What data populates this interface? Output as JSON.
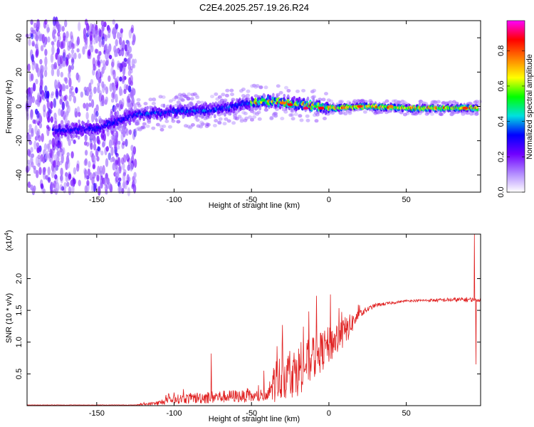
{
  "title": "C2E4.2025.257.19.26.R24",
  "colors": {
    "snr_line": "#e02020",
    "colormap": [
      "#ffffff",
      "#b088ff",
      "#7000ff",
      "#0000ff",
      "#00e0e0",
      "#00ff00",
      "#ffff00",
      "#ff8000",
      "#ff0000",
      "#ff00ff"
    ]
  },
  "chart_data": [
    {
      "type": "heatmap",
      "name": "spectrogram",
      "xlabel": "Height of straight line (km)",
      "ylabel": "Frequency (Hz)",
      "xlim": [
        -195,
        98
      ],
      "ylim": [
        -50,
        50
      ],
      "xticks": [
        -150,
        -100,
        -50,
        0,
        50
      ],
      "yticks": [
        -40,
        -20,
        0,
        20,
        40
      ],
      "colorbar": {
        "label": "Normalized spectral amplitude",
        "range": [
          0,
          0.97
        ],
        "ticks": [
          0.0,
          0.2,
          0.4,
          0.6,
          0.8
        ]
      },
      "ridge": {
        "description": "main frequency ridge (center frequency vs height)",
        "x": [
          -175,
          -150,
          -125,
          -100,
          -75,
          -50,
          -40,
          -25,
          0,
          25,
          50,
          75,
          95
        ],
        "y": [
          -14,
          -13,
          -5,
          -3,
          -2,
          2,
          3,
          2,
          -1,
          0,
          -1,
          -1,
          -1
        ]
      }
    },
    {
      "type": "line",
      "name": "snr",
      "xlabel": "Height of straight line (km)",
      "ylabel": "SNR (10 * v/v)",
      "multiplier": "(x10",
      "multiplier_exp": "4",
      "multiplier_close": ")",
      "xlim": [
        -195,
        98
      ],
      "ylim": [
        0,
        2.7
      ],
      "xticks": [
        -150,
        -100,
        -50,
        0,
        50
      ],
      "yticks": [
        0.5,
        1.0,
        1.5,
        2.0
      ],
      "ytick_labels": [
        "0.5",
        "1.0",
        "1.5",
        "2.0"
      ],
      "envelope": {
        "x": [
          -195,
          -125,
          -110,
          -100,
          -80,
          -60,
          -40,
          -35,
          -20,
          -10,
          0,
          10,
          20,
          30,
          50,
          90,
          98
        ],
        "mean": [
          0.01,
          0.01,
          0.04,
          0.1,
          0.13,
          0.15,
          0.13,
          0.4,
          0.55,
          0.75,
          0.95,
          1.15,
          1.45,
          1.58,
          1.65,
          1.67,
          1.66
        ],
        "noise": [
          0.004,
          0.004,
          0.04,
          0.07,
          0.1,
          0.1,
          0.08,
          0.35,
          0.4,
          0.35,
          0.3,
          0.25,
          0.06,
          0.03,
          0.015,
          0.04,
          0.02
        ]
      },
      "spikes": [
        {
          "x": -76,
          "y": 0.82
        },
        {
          "x": -42,
          "y": 0.55
        },
        {
          "x": -30,
          "y": 1.27
        },
        {
          "x": -8,
          "y": 1.73
        },
        {
          "x": 1,
          "y": 1.75
        },
        {
          "x": 94,
          "y": 2.7
        },
        {
          "x": 95,
          "y": 0.65
        }
      ]
    }
  ]
}
